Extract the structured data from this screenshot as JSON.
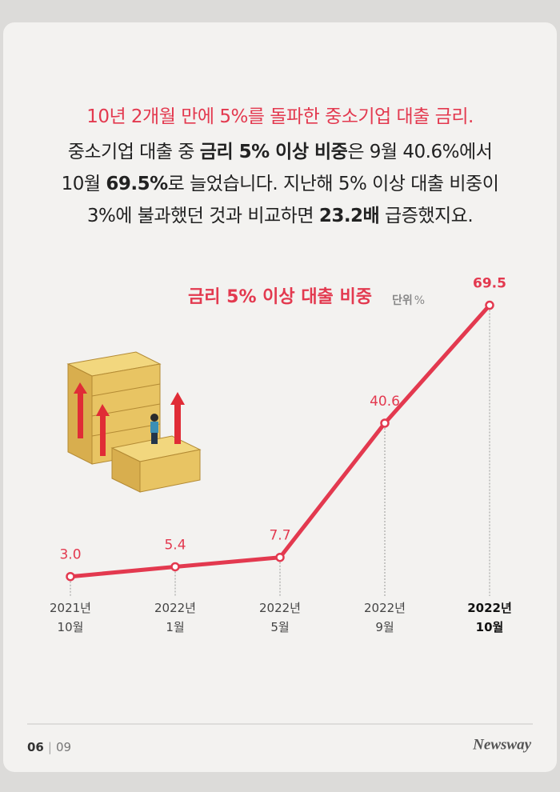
{
  "intro": {
    "headline": "10년 2개월 만에 5%를 돌파한 중소기업 대출 금리.",
    "lines": [
      [
        {
          "text": "중소기업 대출 중 "
        },
        {
          "text": "금리 5% 이상 비중",
          "bold": true
        },
        {
          "text": "은 9월 40.6%에서"
        }
      ],
      [
        {
          "text": "10월 "
        },
        {
          "text": "69.5%",
          "bold": true
        },
        {
          "text": "로 늘었습니다. 지난해 5% 이상 대출 비중이"
        }
      ],
      [
        {
          "text": "3%에 불과했던 것과 비교하면 "
        },
        {
          "text": "23.2배",
          "bold": true
        },
        {
          "text": " 급증했지요."
        }
      ]
    ]
  },
  "chart_data": {
    "type": "line",
    "title": "금리 5% 이상 대출 비중",
    "unit_label": "단위",
    "unit": "%",
    "categories": [
      "2021년\n10월",
      "2022년\n1월",
      "2022년\n5월",
      "2022년\n9월",
      "2022년\n10월"
    ],
    "values": [
      3.0,
      5.4,
      7.7,
      40.6,
      69.5
    ],
    "value_labels": [
      "3.0",
      "5.4",
      "7.7",
      "40.6",
      "69.5"
    ],
    "color": "#e3394f",
    "ylim": [
      0,
      70
    ],
    "highlight_index": 4
  },
  "footer": {
    "page": "06",
    "separator": "|",
    "total": "09",
    "logo": "Newsway"
  }
}
